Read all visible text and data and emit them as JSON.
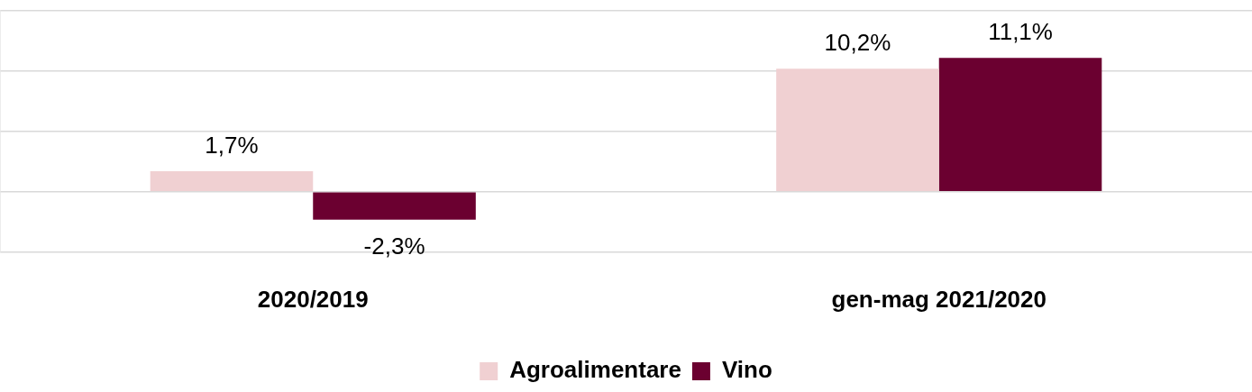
{
  "chart_data": {
    "type": "bar",
    "categories": [
      "2020/2019",
      "gen-mag 2021/2020"
    ],
    "series": [
      {
        "name": "Agroalimentare",
        "color": "#f0d0d2",
        "values": [
          1.7,
          10.2
        ],
        "value_labels": [
          "1,7%",
          "10,2%"
        ]
      },
      {
        "name": "Vino",
        "color": "#6b0030",
        "values": [
          -2.3,
          11.1
        ],
        "value_labels": [
          "-2,3%",
          "11,1%"
        ]
      }
    ],
    "ylim": [
      -5,
      15
    ],
    "yticks": [
      -5,
      0,
      5,
      10,
      15
    ],
    "tick_labels": "x",
    "grid": "y",
    "legend": "bottom"
  }
}
